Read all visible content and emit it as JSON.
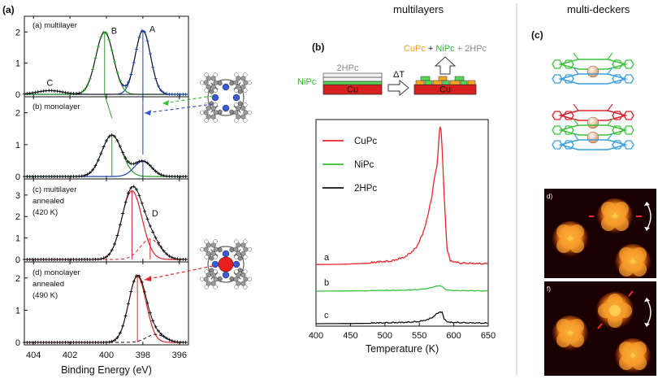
{
  "headers": {
    "multilayers": "multilayers",
    "multideckers": "multi-deckers"
  },
  "panel_labels": {
    "a": "(a)",
    "b": "(b)",
    "c": "(c)"
  },
  "colors": {
    "multilayer_line": "#1f44a8",
    "monolayer_line": "#2e9a2e",
    "annealed_line": "#d8232a",
    "CuPc": "#e8262a",
    "NiPc": "#39c23a",
    "2HPc": "#111111",
    "stm_bg": "#1a0000",
    "stm_blob": "#f07a18"
  },
  "schematic": {
    "layer_top": "2HPc",
    "layer_mid": "NiPc",
    "substrate": "Cu",
    "arrow_label": "ΔT",
    "product_CuPc": "CuPc",
    "product_plus1": " + ",
    "product_NiPc": "NiPc",
    "product_plus2": " + 2HPc"
  },
  "stm_labels": {
    "d": "d)",
    "f": "f)"
  },
  "chart_data": [
    {
      "type": "line",
      "panel": "(a)",
      "xlabel": "Binding Energy (eV)",
      "ylabel": "",
      "xlim": [
        404.5,
        395.5
      ],
      "xticks": [
        404,
        402,
        400,
        398,
        396
      ],
      "subpanels": [
        {
          "id": "a",
          "label": "(a) multilayer",
          "ylim": [
            0,
            2.4
          ],
          "yticks": [
            0,
            1,
            2
          ],
          "peaks": [
            {
              "label": "A",
              "x": 398.0,
              "height": 2.05,
              "width": 0.42,
              "color": "#1f44a8"
            },
            {
              "label": "B",
              "x": 400.1,
              "height": 2.0,
              "width": 0.48,
              "color": "#2e9a2e"
            },
            {
              "label": "C",
              "x": 403.1,
              "height": 0.12,
              "width": 0.7,
              "color": "#111111"
            }
          ]
        },
        {
          "id": "b",
          "label": "(b) monolayer",
          "ylim": [
            0,
            2.4
          ],
          "yticks": [
            0,
            1,
            2
          ],
          "peaks": [
            {
              "label": "",
              "x": 399.7,
              "height": 1.3,
              "width": 0.55,
              "color": "#2e9a2e"
            },
            {
              "label": "",
              "x": 398.0,
              "height": 0.48,
              "width": 0.48,
              "color": "#1f44a8"
            }
          ]
        },
        {
          "id": "c",
          "label": "(c) multilayer annealed (420 K)",
          "label_lines": [
            "(c) multilayer",
            "annealed",
            "(420 K)"
          ],
          "ylim": [
            0,
            3.6
          ],
          "yticks": [
            0,
            1,
            2,
            3
          ],
          "peaks": [
            {
              "label": "",
              "x": 398.6,
              "height": 3.2,
              "width": 0.55,
              "color": "#d8232a"
            },
            {
              "label": "D",
              "x": 397.6,
              "height": 0.95,
              "width": 0.55,
              "color": "#d8232a"
            }
          ]
        },
        {
          "id": "d",
          "label": "(d) monolayer annealed (490 K)",
          "label_lines": [
            "(d) monolayer",
            "annealed",
            "(490 K)"
          ],
          "ylim": [
            0,
            2.4
          ],
          "yticks": [
            0,
            1,
            2
          ],
          "peaks": [
            {
              "label": "",
              "x": 398.3,
              "height": 2.05,
              "width": 0.48,
              "color": "#d8232a"
            },
            {
              "label": "",
              "x": 397.3,
              "height": 0.25,
              "width": 0.5,
              "color": "#111111"
            }
          ]
        }
      ]
    },
    {
      "type": "line",
      "panel": "(b)",
      "xlabel": "Temperature (K)",
      "ylabel": "",
      "xlim": [
        400,
        650
      ],
      "xticks": [
        400,
        450,
        500,
        550,
        600,
        650
      ],
      "legend": {
        "placement": "top-left",
        "entries": [
          "CuPc",
          "NiPc",
          "2HPc"
        ]
      },
      "series": [
        {
          "name": "CuPc",
          "trace_label": "a",
          "color": "#e8262a",
          "points": [
            [
              400,
              0.01
            ],
            [
              440,
              0.012
            ],
            [
              480,
              0.02
            ],
            [
              510,
              0.03
            ],
            [
              530,
              0.06
            ],
            [
              545,
              0.12
            ],
            [
              555,
              0.22
            ],
            [
              562,
              0.34
            ],
            [
              568,
              0.48
            ],
            [
              572,
              0.62
            ],
            [
              576,
              0.7
            ],
            [
              579,
              0.95
            ],
            [
              581,
              1.0
            ],
            [
              583,
              0.82
            ],
            [
              586,
              0.5
            ],
            [
              590,
              0.12
            ],
            [
              595,
              0.03
            ],
            [
              610,
              0.015
            ],
            [
              650,
              0.01
            ]
          ]
        },
        {
          "name": "NiPc",
          "trace_label": "b",
          "color": "#39c23a",
          "points": [
            [
              400,
              0.0
            ],
            [
              450,
              0.005
            ],
            [
              500,
              0.01
            ],
            [
              530,
              0.015
            ],
            [
              550,
              0.03
            ],
            [
              562,
              0.05
            ],
            [
              570,
              0.08
            ],
            [
              576,
              0.1
            ],
            [
              580,
              0.11
            ],
            [
              584,
              0.08
            ],
            [
              588,
              0.03
            ],
            [
              595,
              0.01
            ],
            [
              650,
              0.0
            ]
          ]
        },
        {
          "name": "2HPc",
          "trace_label": "c",
          "color": "#111111",
          "points": [
            [
              400,
              0.0
            ],
            [
              450,
              0.002
            ],
            [
              500,
              0.005
            ],
            [
              530,
              0.01
            ],
            [
              550,
              0.02
            ],
            [
              562,
              0.04
            ],
            [
              570,
              0.07
            ],
            [
              576,
              0.11
            ],
            [
              580,
              0.13
            ],
            [
              583,
              0.12
            ],
            [
              586,
              0.05
            ],
            [
              592,
              0.01
            ],
            [
              650,
              0.0
            ]
          ]
        }
      ]
    }
  ]
}
